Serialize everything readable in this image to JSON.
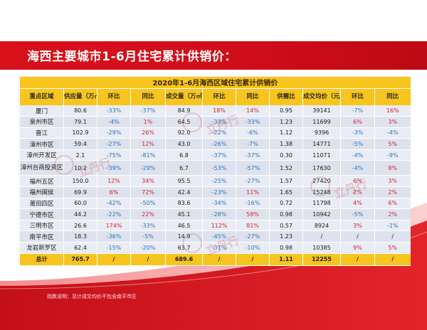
{
  "page": {
    "title": "海西主要城市1-6月住宅累计供销价：",
    "note": "指数说明：总计成交均价不包含南平市区",
    "watermark_text": "立丹行"
  },
  "colors": {
    "brand_red": "#d8111b",
    "header_yellow": "#f7c51e",
    "negative_blue": "#2d73b8",
    "positive_red": "#d3232e"
  },
  "table": {
    "caption": "2020年1-6月海西区域住宅累计供销价",
    "headers": [
      "重点区域",
      "供应量（万㎡）",
      "环比",
      "同比",
      "成交量（万㎡）",
      "环比",
      "同比",
      "供需比",
      "成交均价（元/㎡）",
      "环比",
      "同比"
    ],
    "rows": [
      [
        "厦门",
        "80.6",
        "-33%",
        "-37%",
        "84.9",
        "18%",
        "14%",
        "0.95",
        "39141",
        "-7%",
        "16%"
      ],
      [
        "泉州市区",
        "79.1",
        "-4%",
        "1%",
        "64.5",
        "-33%",
        "-33%",
        "1.23",
        "11699",
        "6%",
        "3%"
      ],
      [
        "晋江",
        "102.9",
        "-29%",
        "26%",
        "92.0",
        "-22%",
        "-6%",
        "1.12",
        "9396",
        "-3%",
        "-4%"
      ],
      [
        "漳州市区",
        "59.4",
        "-27%",
        "12%",
        "43.0",
        "-26%",
        "-7%",
        "1.38",
        "14771",
        "-5%",
        "5%"
      ],
      [
        "漳州开发区",
        "2.1",
        "-75%",
        "-81%",
        "6.8",
        "-37%",
        "-37%",
        "0.30",
        "11071",
        "-4%",
        "-9%"
      ],
      [
        "漳州台商投资区",
        "10.2",
        "-39%",
        "-29%",
        "6.7",
        "-53%",
        "-57%",
        "1.52",
        "17630",
        "-4%",
        "8%"
      ],
      [
        "福州五区",
        "150.0",
        "12%",
        "34%",
        "95.5",
        "-25%",
        "-27%",
        "1.57",
        "27420",
        "6%",
        "3%"
      ],
      [
        "福州闽侯",
        "69.9",
        "6%",
        "72%",
        "42.4",
        "-23%",
        "11%",
        "1.65",
        "15248",
        "2%",
        "2%"
      ],
      [
        "莆田四区",
        "60.0",
        "-42%",
        "-50%",
        "83.6",
        "-34%",
        "-16%",
        "0.72",
        "11798",
        "4%",
        "6%"
      ],
      [
        "宁德市区",
        "44.2",
        "-22%",
        "22%",
        "45.1",
        "-28%",
        "58%",
        "0.98",
        "10942",
        "-5%",
        "2%"
      ],
      [
        "三明市区",
        "26.6",
        "174%",
        "-33%",
        "46.5",
        "112%",
        "81%",
        "0.57",
        "8924",
        "3%",
        "-1%"
      ],
      [
        "南平市区",
        "18.3",
        "-36%",
        "-5%",
        "14.9",
        "-45%",
        "-27%",
        "1.23",
        "/",
        "/",
        "/"
      ],
      [
        "龙岩新罗区",
        "62.4",
        "-15%",
        "-20%",
        "63.7",
        "-31%",
        "-10%",
        "0.98",
        "10385",
        "9%",
        "5%"
      ]
    ],
    "total": [
      "总计",
      "765.7",
      "/",
      "/",
      "689.6",
      "/",
      "/",
      "1.11",
      "12255",
      "/",
      "/"
    ]
  }
}
